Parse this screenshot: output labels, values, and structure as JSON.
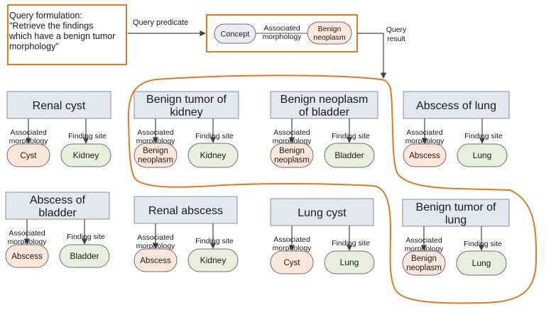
{
  "query": {
    "formulation": [
      "Query formulation:",
      "\"Retrieve the findings",
      "which have a benign tumor",
      "morphology\""
    ],
    "predicate_label": "Query predicate",
    "result_label": [
      "Query",
      "result"
    ],
    "concept": "Concept",
    "relation": [
      "Associated",
      "morphology"
    ],
    "value": [
      "Benign",
      "neoplasm"
    ]
  },
  "labels": {
    "assoc": [
      "Associated",
      "morphology"
    ],
    "site": "Finding site"
  },
  "cards": [
    {
      "title": [
        "Renal cyst"
      ],
      "morph": [
        "Cyst"
      ],
      "site": [
        "Kidney"
      ]
    },
    {
      "title": [
        "Benign tumor of",
        "kidney"
      ],
      "morph": [
        "Benign",
        "neoplasm"
      ],
      "site": [
        "Kidney"
      ]
    },
    {
      "title": [
        "Benign neoplasm",
        "of bladder"
      ],
      "morph": [
        "Benign",
        "neoplasm"
      ],
      "site": [
        "Bladder"
      ]
    },
    {
      "title": [
        "Abscess of lung"
      ],
      "morph": [
        "Abscess"
      ],
      "site": [
        "Lung"
      ]
    },
    {
      "title": [
        "Abscess of",
        "bladder"
      ],
      "morph": [
        "Abscess"
      ],
      "site": [
        "Bladder"
      ]
    },
    {
      "title": [
        "Renal abscess"
      ],
      "morph": [
        "Abscess"
      ],
      "site": [
        "Kidney"
      ]
    },
    {
      "title": [
        "Lung cyst"
      ],
      "morph": [
        "Cyst"
      ],
      "site": [
        "Lung"
      ]
    },
    {
      "title": [
        "Benign tumor of",
        "lung"
      ],
      "morph": [
        "Benign",
        "neoplasm"
      ],
      "site": [
        "Lung"
      ]
    }
  ],
  "colors": {
    "highlight": "#e07b20",
    "title_fill": "#e2e8f0",
    "morph_fill": "#fbe7d9",
    "site_fill": "#e6f0dc"
  }
}
